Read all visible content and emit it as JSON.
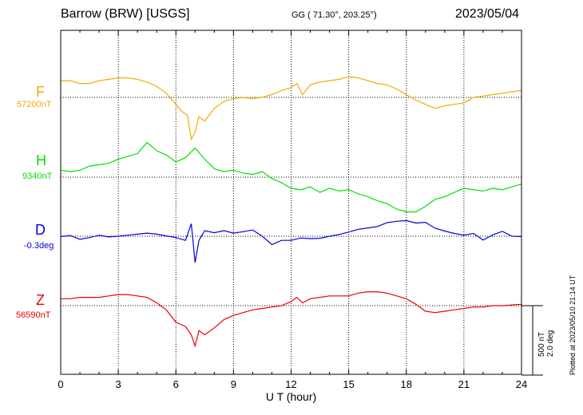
{
  "header": {
    "title": "Barrow (BRW)  [USGS]",
    "coords": "GG ( 71.30°, 203.25°)",
    "date": "2023/05/04"
  },
  "plotted_note": "Plotted at 2023/05/10 21:14 UT",
  "scale": {
    "nt": "500 nT",
    "deg": "2.0 deg"
  },
  "colors": {
    "F": "#f5a800",
    "H": "#00e000",
    "D": "#0000dd",
    "Z": "#ee0000"
  },
  "chart_data": {
    "type": "line",
    "title": "",
    "xlabel": "U T (hour)",
    "ylabel": "",
    "xlim": [
      0,
      24
    ],
    "xticks": [
      0,
      3,
      6,
      9,
      12,
      15,
      18,
      21,
      24
    ],
    "xtick_labels": [
      "0",
      "3",
      "6",
      "9",
      "12",
      "15",
      "18",
      "21",
      "24"
    ],
    "grid": true,
    "scale_bar": "500 nT / 2.0 deg per bar",
    "series": [
      {
        "name": "F",
        "baseline_label": "57200nT",
        "unit": "nT",
        "baseline": 57200,
        "x": [
          0,
          0.5,
          1,
          1.5,
          2,
          2.5,
          3,
          3.5,
          4,
          4.5,
          5,
          5.5,
          6,
          6.3,
          6.6,
          6.8,
          7,
          7.2,
          7.5,
          8,
          8.5,
          9,
          9.5,
          10,
          10.5,
          11,
          11.5,
          12,
          12.3,
          12.6,
          13,
          13.5,
          14,
          14.5,
          15,
          15.5,
          16,
          16.5,
          17,
          17.5,
          18,
          18.5,
          19,
          19.5,
          20,
          20.5,
          21,
          21.5,
          22,
          22.5,
          23,
          23.5,
          24
        ],
        "y": [
          57320,
          57320,
          57300,
          57300,
          57320,
          57330,
          57340,
          57340,
          57330,
          57310,
          57280,
          57230,
          57150,
          57100,
          57070,
          56900,
          56950,
          57060,
          57030,
          57120,
          57170,
          57190,
          57200,
          57190,
          57200,
          57220,
          57250,
          57270,
          57300,
          57220,
          57290,
          57310,
          57320,
          57330,
          57350,
          57340,
          57320,
          57300,
          57290,
          57260,
          57220,
          57180,
          57150,
          57120,
          57140,
          57150,
          57160,
          57200,
          57210,
          57220,
          57230,
          57240,
          57250
        ]
      },
      {
        "name": "H",
        "baseline_label": "9340nT",
        "unit": "nT",
        "baseline": 9340,
        "x": [
          0,
          0.5,
          1,
          1.5,
          2,
          2.5,
          3,
          3.5,
          4,
          4.5,
          5,
          5.5,
          6,
          6.5,
          7,
          7.5,
          8,
          8.5,
          9,
          9.5,
          10,
          10.5,
          11,
          11.5,
          12,
          12.5,
          13,
          13.5,
          14,
          14.5,
          15,
          15.5,
          16,
          16.5,
          17,
          17.5,
          18,
          18.5,
          19,
          19.5,
          20,
          20.5,
          21,
          21.5,
          22,
          22.5,
          23,
          23.5,
          24
        ],
        "y": [
          9390,
          9380,
          9390,
          9420,
          9430,
          9440,
          9470,
          9490,
          9510,
          9590,
          9530,
          9500,
          9450,
          9480,
          9550,
          9470,
          9400,
          9380,
          9390,
          9370,
          9360,
          9380,
          9330,
          9300,
          9260,
          9250,
          9270,
          9230,
          9260,
          9240,
          9250,
          9220,
          9200,
          9170,
          9150,
          9110,
          9090,
          9090,
          9130,
          9180,
          9200,
          9230,
          9260,
          9250,
          9240,
          9260,
          9250,
          9270,
          9290
        ]
      },
      {
        "name": "D",
        "baseline_label": "-0.3deg",
        "unit": "deg",
        "baseline": -0.3,
        "x": [
          0,
          0.5,
          1,
          1.5,
          2,
          2.5,
          3,
          3.5,
          4,
          4.5,
          5,
          5.5,
          6,
          6.5,
          6.8,
          7,
          7.2,
          7.5,
          8,
          8.5,
          9,
          9.5,
          10,
          10.5,
          11,
          11.5,
          12,
          12.5,
          13,
          13.5,
          14,
          14.5,
          15,
          15.5,
          16,
          16.5,
          17,
          17.5,
          18,
          18.5,
          19,
          19.5,
          20,
          20.5,
          21,
          21.5,
          22,
          22.5,
          23,
          23.5,
          24
        ],
        "y": [
          -0.31,
          -0.28,
          -0.39,
          -0.34,
          -0.27,
          -0.32,
          -0.3,
          -0.27,
          -0.24,
          -0.21,
          -0.24,
          -0.29,
          -0.34,
          -0.42,
          0.06,
          -1.06,
          -0.42,
          -0.14,
          -0.2,
          -0.14,
          -0.21,
          -0.17,
          -0.12,
          -0.3,
          -0.54,
          -0.42,
          -0.42,
          -0.35,
          -0.37,
          -0.36,
          -0.3,
          -0.25,
          -0.18,
          -0.1,
          -0.06,
          -0.02,
          0.09,
          0.13,
          0.15,
          0.08,
          0.1,
          -0.07,
          -0.15,
          -0.22,
          -0.27,
          -0.22,
          -0.41,
          -0.26,
          -0.16,
          -0.3,
          -0.31
        ]
      },
      {
        "name": "Z",
        "baseline_label": "56590nT",
        "unit": "nT",
        "baseline": 56590,
        "x": [
          0,
          0.5,
          1,
          1.5,
          2,
          2.5,
          3,
          3.5,
          4,
          4.5,
          5,
          5.5,
          6,
          6.5,
          6.8,
          7,
          7.2,
          7.5,
          8,
          8.5,
          9,
          9.5,
          10,
          10.5,
          11,
          11.5,
          12,
          12.3,
          12.6,
          13,
          13.5,
          14,
          14.5,
          15,
          15.5,
          16,
          16.5,
          17,
          17.5,
          18,
          18.5,
          19,
          19.5,
          20,
          20.5,
          21,
          21.5,
          22,
          22.5,
          23,
          23.5,
          24
        ],
        "y": [
          56640,
          56640,
          56650,
          56650,
          56650,
          56660,
          56670,
          56670,
          56660,
          56650,
          56610,
          56560,
          56470,
          56440,
          56380,
          56300,
          56410,
          56380,
          56430,
          56490,
          56520,
          56540,
          56560,
          56570,
          56580,
          56590,
          56620,
          56650,
          56610,
          56640,
          56650,
          56660,
          56660,
          56660,
          56680,
          56690,
          56690,
          56680,
          56660,
          56640,
          56600,
          56550,
          56540,
          56550,
          56560,
          56570,
          56580,
          56580,
          56590,
          56590,
          56595,
          56600
        ]
      }
    ]
  }
}
